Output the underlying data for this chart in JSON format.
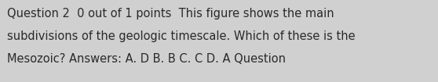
{
  "text": "Question 2  0 out of 1 points  This figure shows the main subdivisions of the geologic timescale. Which of these is the Mesozoic? Answers: A. D B. B C. C D. A Question",
  "line1": "Question 2  0 out of 1 points  This figure shows the main",
  "line2": "subdivisions of the geologic timescale. Which of these is the",
  "line3": "Mesozoic? Answers: A. D B. B C. C D. A Question",
  "background_color": "#d0d0d0",
  "text_color": "#2a2a2a",
  "font_size": 10.5,
  "fig_width": 5.58,
  "fig_height": 1.05,
  "dpi": 100
}
